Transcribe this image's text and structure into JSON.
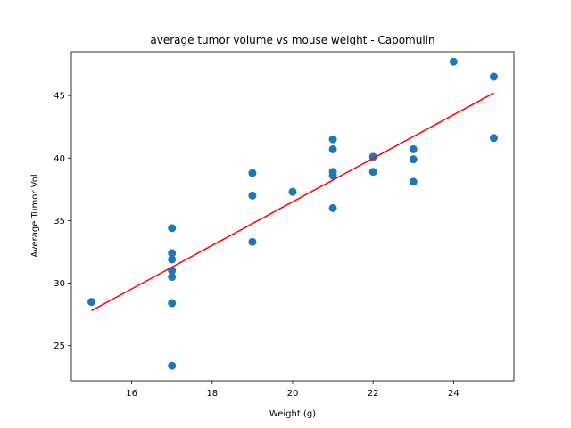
{
  "chart_data": {
    "type": "scatter",
    "title": "average tumor volume vs mouse weight - Capomulin",
    "xlabel": "Weight (g)",
    "ylabel": "Average Tumor Vol",
    "xlim": [
      14.5,
      25.5
    ],
    "ylim": [
      22.2,
      48.5
    ],
    "xticks": [
      16,
      18,
      20,
      22,
      24
    ],
    "yticks": [
      25,
      30,
      35,
      40,
      45
    ],
    "grid": false,
    "points": [
      {
        "x": 15,
        "y": 28.5
      },
      {
        "x": 17,
        "y": 34.4
      },
      {
        "x": 17,
        "y": 32.4
      },
      {
        "x": 17,
        "y": 31.9
      },
      {
        "x": 17,
        "y": 31.0
      },
      {
        "x": 17,
        "y": 30.5
      },
      {
        "x": 17,
        "y": 28.4
      },
      {
        "x": 17,
        "y": 23.4
      },
      {
        "x": 19,
        "y": 38.8
      },
      {
        "x": 19,
        "y": 37.0
      },
      {
        "x": 19,
        "y": 33.3
      },
      {
        "x": 20,
        "y": 37.3
      },
      {
        "x": 21,
        "y": 41.5
      },
      {
        "x": 21,
        "y": 40.7
      },
      {
        "x": 21,
        "y": 38.9
      },
      {
        "x": 21,
        "y": 38.6
      },
      {
        "x": 21,
        "y": 36.0
      },
      {
        "x": 22,
        "y": 40.1
      },
      {
        "x": 22,
        "y": 38.9
      },
      {
        "x": 23,
        "y": 40.7
      },
      {
        "x": 23,
        "y": 39.9
      },
      {
        "x": 23,
        "y": 38.1
      },
      {
        "x": 24,
        "y": 47.7
      },
      {
        "x": 25,
        "y": 46.5
      },
      {
        "x": 25,
        "y": 41.6
      }
    ],
    "regression_line": {
      "x": [
        15,
        25
      ],
      "y": [
        27.8,
        45.2
      ]
    },
    "colors": {
      "points": "#1f77b4",
      "line": "#ff0000"
    }
  }
}
